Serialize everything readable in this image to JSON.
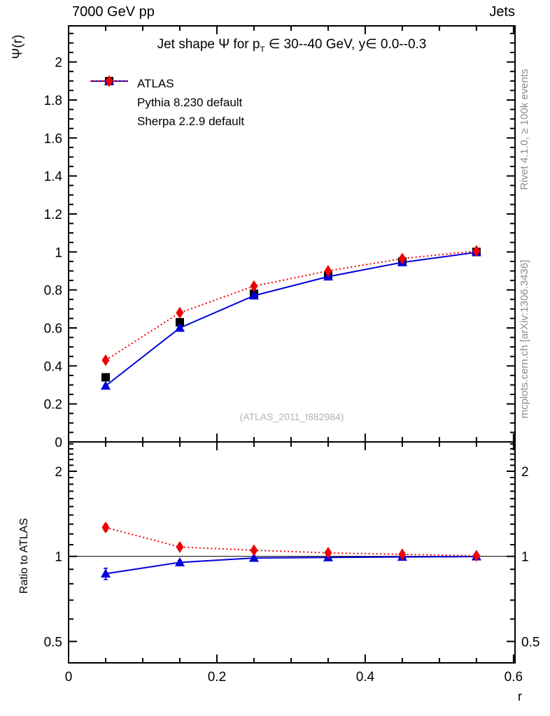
{
  "header": {
    "left": "7000 GeV pp",
    "right": "Jets"
  },
  "title_parts": {
    "prefix": "Jet shape Ψ for p",
    "sub": "T",
    "suffix": " ∈ 30--40 GeV, y∈ 0.0--0.3"
  },
  "side_notes": {
    "rivet": "Rivet 4.1.0, ≥ 100k events",
    "mcplots": "mcplots.cern.ch [arXiv:1306.3436]"
  },
  "chart_data": [
    {
      "type": "line",
      "title": "Jet shape Ψ for p_T ∈ 30--40 GeV, y∈ 0.0--0.3",
      "annotation": "(ATLAS_2011_I882984)",
      "xlabel": "",
      "ylabel": "Ψ(r)",
      "xlim": [
        0,
        0.602
      ],
      "ylim": [
        0,
        2.19
      ],
      "grid": false,
      "legend_pos": "top-left",
      "xticks": {
        "major": [
          0,
          0.2,
          0.4,
          0.6
        ],
        "minor_step": 0.05
      },
      "yticks": {
        "major_step": 0.2,
        "minor_step": 0.05,
        "label_min": 0,
        "label_max": 2
      },
      "x": [
        0.05,
        0.15,
        0.25,
        0.35,
        0.45,
        0.55
      ],
      "series": [
        {
          "name": "ATLAS",
          "color": "#000000",
          "marker": "square",
          "line": "none",
          "values": [
            0.34,
            0.63,
            0.78,
            0.875,
            0.95,
            1.0
          ],
          "errors": [
            0.012,
            0.01,
            0.008,
            0.006,
            0.005,
            0.004
          ]
        },
        {
          "name": "Pythia 8.230 default",
          "color": "#0000dd",
          "marker": "triangle",
          "line": "solid",
          "values": [
            0.295,
            0.6,
            0.77,
            0.87,
            0.945,
            0.998
          ],
          "errors": [
            0.008,
            0.006,
            0.005,
            0.004,
            0.003,
            0.003
          ]
        },
        {
          "name": "Sherpa 2.2.9 default",
          "color": "#ee0000",
          "marker": "diamond",
          "line": "dotted",
          "values": [
            0.43,
            0.68,
            0.82,
            0.9,
            0.965,
            1.005
          ],
          "errors": [
            0.012,
            0.008,
            0.006,
            0.005,
            0.004,
            0.004
          ]
        }
      ]
    },
    {
      "type": "line",
      "title": "",
      "xlabel": "r",
      "ylabel": "Ratio to ATLAS",
      "yscale": "log",
      "xlim": [
        0,
        0.602
      ],
      "ylim": [
        0.42,
        2.54
      ],
      "baseline": 1,
      "grid": false,
      "xticks": {
        "major": [
          0,
          0.2,
          0.4,
          0.6
        ],
        "minor_step": 0.05
      },
      "yticks": {
        "labeled": [
          0.5,
          1,
          2
        ],
        "minor_range": [
          0.5,
          2.5
        ],
        "minor_step": 0.1
      },
      "x": [
        0.05,
        0.15,
        0.25,
        0.35,
        0.45,
        0.55
      ],
      "series": [
        {
          "name": "Pythia 8.230 default",
          "color": "#0000dd",
          "marker": "triangle",
          "line": "solid",
          "values": [
            0.868,
            0.952,
            0.987,
            0.991,
            0.995,
            0.998
          ],
          "errors": [
            0.04,
            0.015,
            0.01,
            0.008,
            0.012,
            0.015
          ]
        },
        {
          "name": "Sherpa 2.2.9 default",
          "color": "#ee0000",
          "marker": "diamond",
          "line": "dotted",
          "values": [
            1.265,
            1.079,
            1.051,
            1.029,
            1.016,
            1.005
          ],
          "errors": [
            0.035,
            0.02,
            0.012,
            0.012,
            0.012,
            0.018
          ]
        }
      ]
    }
  ]
}
